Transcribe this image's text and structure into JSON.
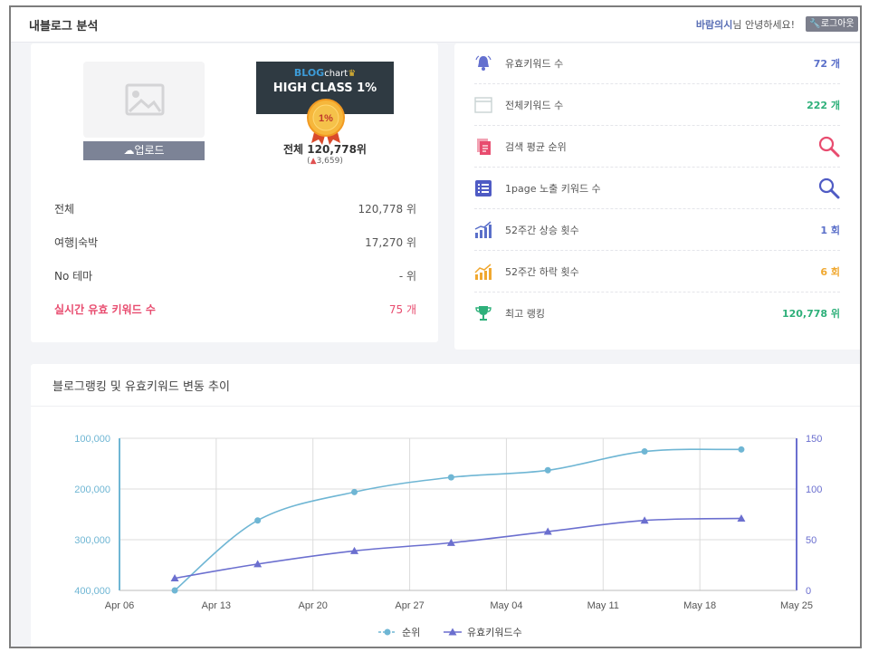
{
  "header": {
    "title": "내블로그 분석",
    "user_name": "바람의시",
    "greeting": "님 안녕하세요!",
    "logout_label": "로그아웃"
  },
  "profile": {
    "upload_label": "업로드",
    "badge_brand_blog": "BLOG",
    "badge_brand_chart": "chart",
    "badge_class": "HIGH CLASS 1%",
    "medal_text": "1%",
    "total_rank": "전체 120,778위",
    "rank_change_arrow": "▲",
    "rank_change": "3,659"
  },
  "stats": [
    {
      "label": "전체",
      "value": "120,778 위"
    },
    {
      "label": "여행|숙박",
      "value": "17,270 위"
    },
    {
      "label": "No 테마",
      "value": "- 위"
    },
    {
      "label": "실시간 유효 키워드 수",
      "value": "75 개"
    }
  ],
  "metrics": [
    {
      "icon": "bell-icon",
      "label": "유효키워드 수",
      "value": "72 개",
      "color": "#5a6fc9"
    },
    {
      "icon": "window-icon",
      "label": "전체키워드 수",
      "value": "222 개",
      "color": "#2eb07a"
    },
    {
      "icon": "document-icon",
      "label": "검색 평균 순위",
      "value": "",
      "color": "#e84c6f"
    },
    {
      "icon": "list-icon",
      "label": "1page 노출 키워드 수",
      "value": "",
      "color": "#4f5bc4"
    },
    {
      "icon": "bar-chart-up-icon",
      "label": "52주간 상승 횟수",
      "value": "1 회",
      "color": "#5a6fc9"
    },
    {
      "icon": "trend-up-icon",
      "label": "52주간 하락 횟수",
      "value": "6 회",
      "color": "#f0a830"
    },
    {
      "icon": "trophy-icon",
      "label": "최고 랭킹",
      "value": "120,778 위",
      "color": "#2eb07a"
    }
  ],
  "chart": {
    "title": "블로그랭킹 및 유효키워드 변동 추이"
  },
  "chart_data": {
    "type": "line",
    "x_ticks": [
      "Apr 06",
      "Apr 13",
      "Apr 20",
      "Apr 27",
      "May 04",
      "May 11",
      "May 18",
      "May 25"
    ],
    "x": [
      "Apr 10",
      "Apr 16",
      "Apr 23",
      "Apr 30",
      "May 07",
      "May 14",
      "May 21"
    ],
    "series": [
      {
        "name": "순위",
        "axis": "left",
        "marker": "circle",
        "color": "#6fb6d4",
        "values": [
          400000,
          262000,
          206000,
          177000,
          163000,
          126000,
          122000
        ]
      },
      {
        "name": "유효키워드수",
        "axis": "right",
        "marker": "triangle",
        "color": "#6b6fcf",
        "values": [
          12,
          26,
          39,
          47,
          58,
          69,
          71
        ]
      }
    ],
    "y_left": {
      "ticks": [
        "100,000",
        "200,000",
        "300,000",
        "400,000"
      ],
      "range": [
        100000,
        400000
      ],
      "reversed": true
    },
    "y_right": {
      "ticks": [
        "150",
        "100",
        "50",
        "0"
      ],
      "range": [
        0,
        150
      ]
    },
    "grid": true,
    "legend": "bottom"
  }
}
